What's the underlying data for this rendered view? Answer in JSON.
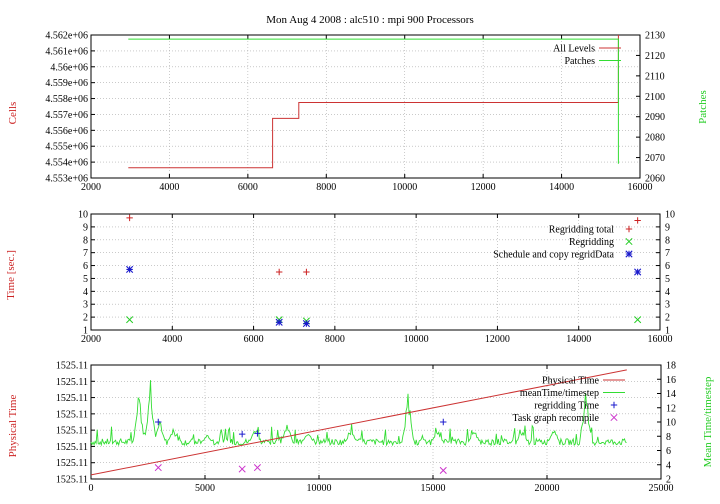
{
  "title": "Mon Aug 4 2008 : alc510 : mpi 900 Processors",
  "colors": {
    "red": "#cc2222",
    "green": "#22cc22",
    "blue": "#1a1acc",
    "magenta": "#cc33cc",
    "line_red": "#cc3333",
    "line_green": "#33dd33"
  },
  "chart_data": [
    {
      "type": "line",
      "title": "Mon Aug 4 2008 : alc510 : mpi 900 Processors",
      "ylabel": "Cells",
      "y2label": "Patches",
      "xlim": [
        2000,
        16000
      ],
      "ylim": [
        4553000,
        4562000
      ],
      "y2lim": [
        2060,
        2130
      ],
      "grid": true,
      "legend_position": "top-right",
      "xticks": [
        "2000",
        "4000",
        "6000",
        "8000",
        "10000",
        "12000",
        "14000",
        "16000"
      ],
      "yticks": [
        "4.553e+06",
        "4.554e+06",
        "4.555e+06",
        "4.556e+06",
        "4.557e+06",
        "4.558e+06",
        "4.559e+06",
        "4.56e+06",
        "4.561e+06",
        "4.562e+06"
      ],
      "y2ticks": [
        "2060",
        "2070",
        "2080",
        "2090",
        "2100",
        "2110",
        "2120",
        "2130"
      ],
      "series": [
        {
          "name": "All Levels",
          "axis": "y",
          "step": true,
          "x": [
            2950,
            6630,
            6630,
            7300,
            7300,
            15450,
            15450
          ],
          "y": [
            4553650,
            4553650,
            4556750,
            4556750,
            4557750,
            4557750,
            4562000
          ]
        },
        {
          "name": "Patches",
          "axis": "y2",
          "step": true,
          "x": [
            2950,
            15450,
            15450
          ],
          "y": [
            2128,
            2128,
            2067
          ]
        }
      ]
    },
    {
      "type": "scatter",
      "ylabel": "Time [sec.]",
      "xlim": [
        2000,
        16000
      ],
      "ylim": [
        1,
        10
      ],
      "y2lim": [
        1,
        10
      ],
      "grid": true,
      "legend_position": "top-right",
      "xticks": [
        "2000",
        "4000",
        "6000",
        "8000",
        "10000",
        "12000",
        "14000",
        "16000"
      ],
      "yticks": [
        "1",
        "2",
        "3",
        "4",
        "5",
        "6",
        "7",
        "8",
        "9",
        "10"
      ],
      "y2ticks": [
        "1",
        "2",
        "3",
        "4",
        "5",
        "6",
        "7",
        "8",
        "9",
        "10"
      ],
      "series": [
        {
          "name": "Regridding total",
          "marker": "+",
          "x": [
            2950,
            6630,
            7300,
            15450
          ],
          "y": [
            9.7,
            5.5,
            5.5,
            9.5
          ]
        },
        {
          "name": "Regridding",
          "marker": "x",
          "x": [
            2950,
            6630,
            7300,
            15450
          ],
          "y": [
            1.8,
            1.8,
            1.7,
            1.8
          ]
        },
        {
          "name": "Schedule and copy regridData",
          "marker": "*",
          "x": [
            2950,
            6630,
            7300,
            15450
          ],
          "y": [
            5.7,
            1.6,
            1.5,
            5.5
          ]
        }
      ]
    },
    {
      "type": "line",
      "ylabel": "Physical Time",
      "y2label": "Mean Time/timestep",
      "xlim": [
        0,
        25000
      ],
      "ylim": [
        0,
        7
      ],
      "y2lim": [
        2,
        18
      ],
      "grid": true,
      "legend_position": "top-right",
      "xticks": [
        "0",
        "5000",
        "10000",
        "15000",
        "20000",
        "25000"
      ],
      "yticks": [
        "1525.11",
        "1525.11",
        "1525.11",
        "1525.11",
        "1525.11",
        "1525.11",
        "1525.11",
        "1525.11"
      ],
      "y2ticks": [
        "2",
        "4",
        "6",
        "8",
        "10",
        "12",
        "14",
        "16",
        "18"
      ],
      "series": [
        {
          "name": "Physical Time",
          "axis": "y",
          "x": [
            0,
            23500
          ],
          "y": [
            0.25,
            6.7
          ]
        },
        {
          "name": "meanTime/timestep",
          "axis": "y2",
          "noisy": true,
          "x_start": 0,
          "x_end": 23500,
          "baseline": 7.2,
          "peaks": [
            {
              "x": 2100,
              "y": 14.5
            },
            {
              "x": 2600,
              "y": 16.5
            },
            {
              "x": 3000,
              "y": 10.5
            },
            {
              "x": 3600,
              "y": 9.2
            },
            {
              "x": 5100,
              "y": 8.2
            },
            {
              "x": 7200,
              "y": 9.2
            },
            {
              "x": 8600,
              "y": 10
            },
            {
              "x": 9500,
              "y": 8.8
            },
            {
              "x": 11400,
              "y": 9
            },
            {
              "x": 13900,
              "y": 14.5
            },
            {
              "x": 15200,
              "y": 9
            },
            {
              "x": 16800,
              "y": 9
            },
            {
              "x": 18900,
              "y": 8.8
            },
            {
              "x": 20300,
              "y": 9.5
            },
            {
              "x": 21700,
              "y": 15.5
            }
          ]
        },
        {
          "name": "regridding Time",
          "axis": "y2",
          "marker": "+",
          "x": [
            2950,
            6630,
            7300,
            15450
          ],
          "y": [
            10,
            8.3,
            8.4,
            10
          ]
        },
        {
          "name": "Task graph recompile",
          "axis": "y2",
          "marker": "x",
          "x": [
            2950,
            6630,
            7300,
            15450
          ],
          "y": [
            3.6,
            3.4,
            3.6,
            3.2
          ]
        }
      ]
    }
  ]
}
